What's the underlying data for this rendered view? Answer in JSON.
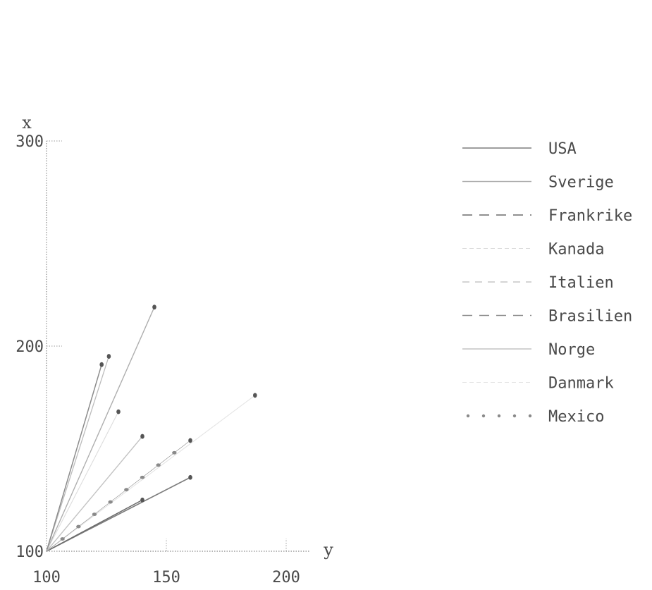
{
  "chart_data": {
    "type": "line",
    "xlabel": "y",
    "ylabel": "x",
    "xlim": [
      100,
      210
    ],
    "ylim": [
      100,
      300
    ],
    "x_ticks": [
      100,
      150,
      200
    ],
    "y_ticks": [
      100,
      200,
      300
    ],
    "x_tick_labels": [
      "100",
      "150",
      "200"
    ],
    "y_tick_labels": [
      "100",
      "200",
      "300"
    ],
    "legend_position": "right",
    "series": [
      {
        "name": "USA",
        "style": "solid",
        "color": "#7d7d7d",
        "x": [
          100,
          160
        ],
        "y": [
          100,
          136
        ]
      },
      {
        "name": "Sverige",
        "style": "solid-light",
        "color": "#a6a6a6",
        "x": [
          100,
          145
        ],
        "y": [
          100,
          219
        ]
      },
      {
        "name": "Frankrike",
        "style": "dashed",
        "color": "#6b6b6b",
        "x": [
          100,
          140
        ],
        "y": [
          100,
          125
        ]
      },
      {
        "name": "Kanada",
        "style": "faint",
        "color": "#d4d4d4",
        "x": [
          100,
          130
        ],
        "y": [
          100,
          168
        ]
      },
      {
        "name": "Italien",
        "style": "dashed-light",
        "color": "#b5b5b5",
        "x": [
          100,
          126
        ],
        "y": [
          100,
          195
        ]
      },
      {
        "name": "Brasilien",
        "style": "dashed",
        "color": "#8c8c8c",
        "x": [
          100,
          123
        ],
        "y": [
          100,
          191
        ]
      },
      {
        "name": "Norge",
        "style": "solid-light",
        "color": "#bcbcbc",
        "x": [
          100,
          140
        ],
        "y": [
          100,
          156
        ]
      },
      {
        "name": "Danmark",
        "style": "faint",
        "color": "#dedede",
        "x": [
          100,
          187
        ],
        "y": [
          100,
          176
        ]
      },
      {
        "name": "Mexico",
        "style": "dotted",
        "color": "#8a8a8a",
        "x": [
          100,
          160
        ],
        "y": [
          100,
          154
        ]
      }
    ]
  }
}
